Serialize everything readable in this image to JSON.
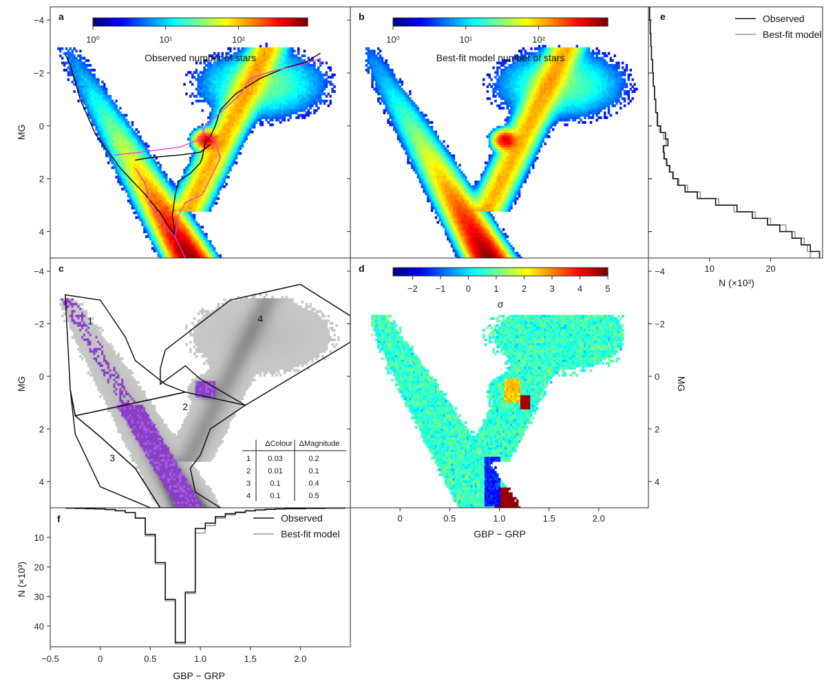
{
  "chart_data": [
    {
      "panel": "a",
      "type": "heatmap",
      "panel_label": "a",
      "colorbar_label": "Observed number of stars",
      "colorbar_ticks": [
        "10⁰",
        "10¹",
        "10²"
      ],
      "colorbar_scale": "log",
      "xlim": [
        -0.5,
        2.5
      ],
      "ylim": [
        5,
        -4.5
      ],
      "ylabel": "MG",
      "yticks": [
        "−4",
        "−2",
        "0",
        "2",
        "4"
      ],
      "grid": false,
      "curves": [
        {
          "color": "#000000",
          "points": [
            [
              -0.35,
              -2.7
            ],
            [
              -0.3,
              -2.3
            ],
            [
              -0.2,
              -1.0
            ],
            [
              -0.05,
              0.3
            ],
            [
              0.2,
              1.6
            ],
            [
              0.45,
              2.6
            ],
            [
              0.6,
              3.3
            ],
            [
              0.75,
              4.2
            ],
            [
              0.85,
              5.0
            ]
          ]
        },
        {
          "color": "#000000",
          "points": [
            [
              0.75,
              4.2
            ],
            [
              0.72,
              3.4
            ],
            [
              0.75,
              2.6
            ],
            [
              0.78,
              2.1
            ],
            [
              0.9,
              1.8
            ],
            [
              1.0,
              1.4
            ],
            [
              1.02,
              1.2
            ],
            [
              1.05,
              0.6
            ],
            [
              1.1,
              0.4
            ],
            [
              1.15,
              0.0
            ],
            [
              1.2,
              -0.6
            ],
            [
              1.35,
              -1.2
            ],
            [
              1.6,
              -1.8
            ],
            [
              1.85,
              -2.2
            ],
            [
              2.05,
              -2.4
            ],
            [
              2.2,
              -2.75
            ]
          ]
        },
        {
          "color": "#000000",
          "points": [
            [
              0.35,
              1.3
            ],
            [
              0.5,
              1.2
            ],
            [
              0.8,
              1.1
            ],
            [
              1.0,
              1.0
            ],
            [
              1.1,
              0.7
            ]
          ]
        },
        {
          "color": "#e040e0",
          "points": [
            [
              0.15,
              1.1
            ],
            [
              0.4,
              1.0
            ],
            [
              0.8,
              0.8
            ],
            [
              1.0,
              0.5
            ],
            [
              1.05,
              0.0
            ],
            [
              1.2,
              -0.5
            ],
            [
              1.4,
              -1.2
            ],
            [
              1.5,
              -1.8
            ],
            [
              1.75,
              -2.1
            ],
            [
              2.0,
              -2.3
            ],
            [
              2.2,
              -2.55
            ],
            [
              2.2,
              -2.3
            ]
          ]
        },
        {
          "color": "#e040e0",
          "points": [
            [
              0.35,
              1.6
            ],
            [
              0.45,
              2.2
            ],
            [
              0.5,
              3.0
            ],
            [
              0.6,
              3.6
            ],
            [
              0.75,
              4.2
            ],
            [
              0.85,
              5.0
            ]
          ]
        },
        {
          "color": "#e040e0",
          "points": [
            [
              0.75,
              4.2
            ],
            [
              0.78,
              3.4
            ],
            [
              0.85,
              2.9
            ],
            [
              1.02,
              2.6
            ],
            [
              1.1,
              2.0
            ],
            [
              1.2,
              1.2
            ],
            [
              1.15,
              0.6
            ],
            [
              1.05,
              0.3
            ],
            [
              1.0,
              0.0
            ]
          ]
        }
      ]
    },
    {
      "panel": "b",
      "type": "heatmap",
      "panel_label": "b",
      "colorbar_label": "Best-fit model number of stars",
      "colorbar_ticks": [
        "10⁰",
        "10¹",
        "10²"
      ],
      "colorbar_scale": "log",
      "xlim": [
        -0.5,
        2.5
      ],
      "ylim": [
        5,
        -4.5
      ],
      "grid": false
    },
    {
      "panel": "c",
      "type": "scatter",
      "panel_label": "c",
      "xlim": [
        -0.5,
        2.5
      ],
      "ylim": [
        5,
        -4.5
      ],
      "ylabel": "MG",
      "yticks": [
        "−4",
        "−2",
        "0",
        "2",
        "4"
      ],
      "region_labels": [
        {
          "text": "1",
          "x": -0.1,
          "y": -2.1
        },
        {
          "text": "2",
          "x": 0.85,
          "y": 1.15
        },
        {
          "text": "3",
          "x": 0.12,
          "y": 3.1
        },
        {
          "text": "4",
          "x": 1.6,
          "y": -2.2
        }
      ],
      "regions": [
        {
          "points": [
            [
              -0.35,
              -3.1
            ],
            [
              0.0,
              -2.9
            ],
            [
              0.25,
              -1.5
            ],
            [
              0.35,
              -0.6
            ],
            [
              0.65,
              0.3
            ],
            [
              0.85,
              0.6
            ],
            [
              -0.25,
              1.5
            ],
            [
              -0.3,
              0.5
            ]
          ]
        },
        {
          "points": [
            [
              -0.25,
              1.5
            ],
            [
              0.85,
              0.6
            ],
            [
              1.45,
              1.1
            ],
            [
              1.1,
              2.0
            ],
            [
              1.0,
              3.0
            ],
            [
              0.9,
              3.5
            ],
            [
              0.95,
              4.4
            ],
            [
              1.2,
              5.0
            ],
            [
              0.6,
              5.0
            ],
            [
              0.35,
              3.5
            ],
            [
              0.0,
              2.3
            ]
          ]
        },
        {
          "points": [
            [
              -0.3,
              0.5
            ],
            [
              -0.25,
              1.5
            ],
            [
              0.0,
              2.3
            ],
            [
              0.35,
              3.5
            ],
            [
              0.6,
              5.0
            ],
            [
              0.5,
              5.0
            ],
            [
              0.0,
              4.2
            ],
            [
              -0.25,
              2.2
            ]
          ]
        },
        {
          "points": [
            [
              0.65,
              -1.0
            ],
            [
              1.3,
              -2.9
            ],
            [
              2.0,
              -3.5
            ],
            [
              2.5,
              -2.3
            ],
            [
              2.5,
              -1.3
            ],
            [
              1.45,
              1.1
            ],
            [
              1.0,
              0.1
            ],
            [
              0.85,
              -0.4
            ],
            [
              0.6,
              0.3
            ],
            [
              0.6,
              -0.3
            ]
          ]
        }
      ],
      "table": {
        "headers": [
          "",
          "ΔColour",
          "ΔMagnitude"
        ],
        "rows": [
          [
            "1",
            "0.03",
            "0.2"
          ],
          [
            "2",
            "0.01",
            "0.1"
          ],
          [
            "3",
            "0.1",
            "0.4"
          ],
          [
            "4",
            "0.1",
            "0.5"
          ]
        ]
      }
    },
    {
      "panel": "d",
      "type": "heatmap",
      "panel_label": "d",
      "colorbar_label": "σ",
      "colorbar_ticks": [
        "−2",
        "−1",
        "0",
        "1",
        "2",
        "3",
        "4",
        "5"
      ],
      "colorbar_range": [
        -2.7,
        5
      ],
      "xlim": [
        -0.5,
        2.5
      ],
      "ylim": [
        5,
        -4.5
      ],
      "xlabel": "GBP − GRP",
      "xticks": [
        "0",
        "0.5",
        "1.0",
        "1.5",
        "2.0"
      ],
      "ylabel": "MG",
      "yticks": [
        "−4",
        "−2",
        "0",
        "2",
        "4"
      ],
      "ylabel_side": "right"
    },
    {
      "panel": "e",
      "type": "line",
      "panel_label": "e",
      "orientation": "horizontal-histogram",
      "xlabel": "N (×10³)",
      "xticks": [
        "10",
        "20"
      ],
      "xlim": [
        0,
        28.5
      ],
      "ylim": [
        5,
        -4.5
      ],
      "legend": [
        "Observed",
        "Best-fit model"
      ],
      "legend_position": "top-right",
      "series": [
        {
          "name": "Observed",
          "color": "#111111",
          "y": [
            -4.0,
            -3.5,
            -3.0,
            -2.5,
            -2.0,
            -1.5,
            -1.0,
            -0.5,
            0.0,
            0.25,
            0.5,
            0.75,
            1.0,
            1.25,
            1.5,
            1.75,
            2.0,
            2.25,
            2.5,
            2.75,
            3.0,
            3.25,
            3.5,
            3.75,
            4.0,
            4.25,
            4.5,
            4.75,
            5.0
          ],
          "values": [
            0.2,
            0.3,
            0.4,
            0.5,
            0.7,
            0.8,
            1.0,
            1.2,
            1.5,
            2.0,
            2.8,
            3.2,
            2.5,
            2.6,
            3.0,
            3.5,
            4.0,
            4.8,
            6.0,
            8.0,
            11.0,
            14.5,
            17.0,
            19.5,
            21.5,
            23.5,
            25.0,
            26.5,
            28.0
          ]
        },
        {
          "name": "Best-fit model",
          "color": "#999999",
          "y": [
            -4.0,
            -3.5,
            -3.0,
            -2.5,
            -2.0,
            -1.5,
            -1.0,
            -0.5,
            0.0,
            0.25,
            0.5,
            0.75,
            1.0,
            1.25,
            1.5,
            1.75,
            2.0,
            2.25,
            2.5,
            2.75,
            3.0,
            3.25,
            3.5,
            3.75,
            4.0,
            4.25,
            4.5,
            4.75,
            5.0
          ],
          "values": [
            0.2,
            0.3,
            0.4,
            0.5,
            0.7,
            0.8,
            1.0,
            1.2,
            1.4,
            1.8,
            2.5,
            2.9,
            2.4,
            2.5,
            2.9,
            3.4,
            4.1,
            5.0,
            6.4,
            8.5,
            11.5,
            14.0,
            17.5,
            20.0,
            22.5,
            24.0,
            25.5,
            26.0,
            26.5
          ]
        }
      ]
    },
    {
      "panel": "f",
      "type": "line",
      "panel_label": "f",
      "orientation": "inverted-histogram",
      "xlabel": "GBP − GRP",
      "xticks": [
        "−0.5",
        "0",
        "0.5",
        "1.0",
        "1.5",
        "2.0"
      ],
      "xlim": [
        -0.5,
        2.5
      ],
      "ylabel": "N (×10³)",
      "yticks": [
        "10",
        "20",
        "30",
        "40"
      ],
      "ylim": [
        0,
        47
      ],
      "legend": [
        "Observed",
        "Best-fit model"
      ],
      "legend_position": "top-right",
      "series": [
        {
          "name": "Observed",
          "color": "#111111",
          "x": [
            -0.3,
            -0.2,
            -0.1,
            0.0,
            0.1,
            0.2,
            0.3,
            0.4,
            0.5,
            0.6,
            0.7,
            0.8,
            0.9,
            1.0,
            1.1,
            1.2,
            1.3,
            1.4,
            1.5,
            1.6,
            1.7,
            1.8,
            1.9,
            2.0,
            2.1,
            2.2,
            2.3,
            2.4
          ],
          "values": [
            0.1,
            0.2,
            0.3,
            0.4,
            0.6,
            1.0,
            1.6,
            3.5,
            9.0,
            18.5,
            31.0,
            45.5,
            28.5,
            7.0,
            5.2,
            3.0,
            2.0,
            1.5,
            1.0,
            0.7,
            0.5,
            0.4,
            0.3,
            0.3,
            0.2,
            0.2,
            0.1,
            0.1
          ]
        },
        {
          "name": "Best-fit model",
          "color": "#999999",
          "x": [
            -0.3,
            -0.2,
            -0.1,
            0.0,
            0.1,
            0.2,
            0.3,
            0.4,
            0.5,
            0.6,
            0.7,
            0.8,
            0.9,
            1.0,
            1.1,
            1.2,
            1.3,
            1.4,
            1.5,
            1.6,
            1.7,
            1.8,
            1.9,
            2.0,
            2.1,
            2.2,
            2.3,
            2.4
          ],
          "values": [
            0.1,
            0.2,
            0.3,
            0.4,
            0.6,
            1.0,
            1.6,
            3.4,
            9.5,
            19.0,
            31.5,
            46.0,
            29.0,
            8.5,
            6.0,
            3.5,
            2.4,
            1.7,
            1.1,
            0.8,
            0.6,
            0.4,
            0.3,
            0.3,
            0.2,
            0.2,
            0.1,
            0.1
          ]
        }
      ]
    }
  ],
  "colors": {
    "isochrone_black": "#000000",
    "isochrone_magenta": "#e040e0",
    "purple_points": "#8a3fc8",
    "grey_points": "#b0b0b0"
  }
}
